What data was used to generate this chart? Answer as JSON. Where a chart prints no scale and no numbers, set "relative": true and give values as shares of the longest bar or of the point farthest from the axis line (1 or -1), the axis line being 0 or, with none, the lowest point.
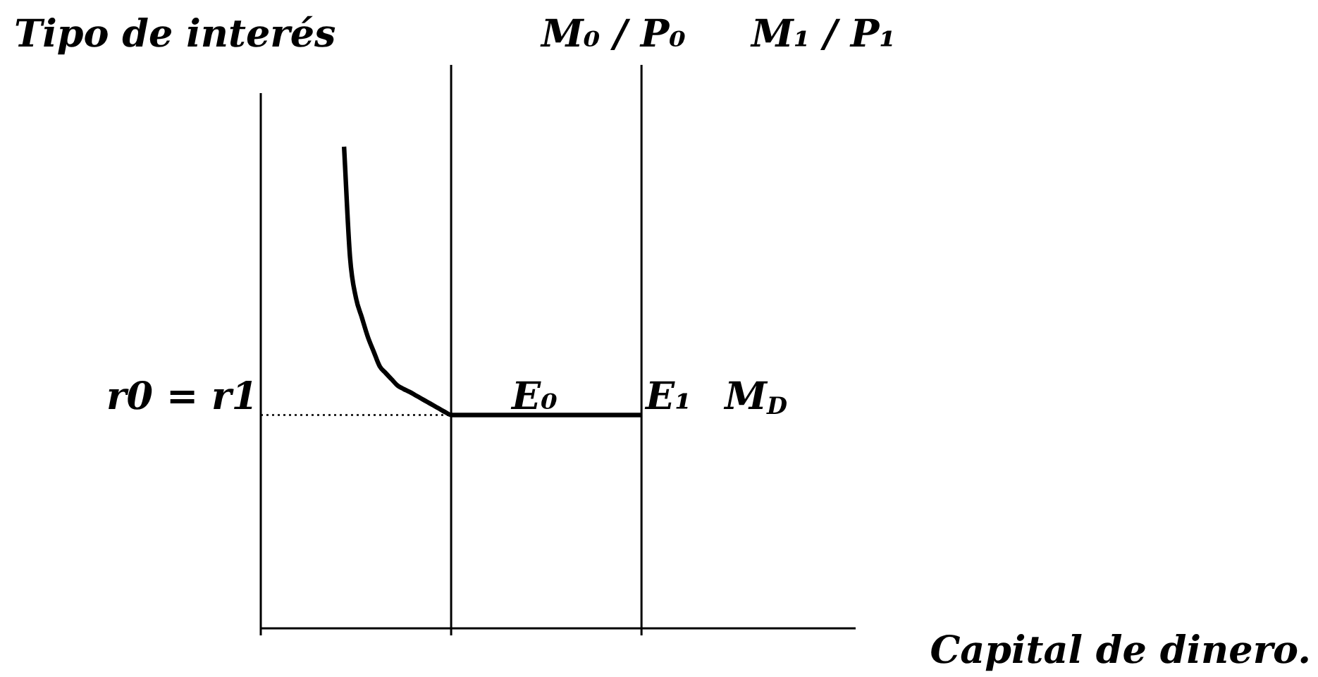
{
  "chart_data": {
    "type": "line",
    "relative": true,
    "xlabel": "Capital de dinero.",
    "ylabel": "Tipo de interés",
    "marker": "none",
    "categories": [
      null,
      null,
      null,
      null,
      null,
      null,
      null,
      null,
      null,
      null,
      null,
      null,
      null,
      null,
      null,
      null,
      null,
      null,
      null,
      null,
      null,
      null,
      null,
      null,
      null,
      null,
      null,
      null,
      null,
      null,
      null,
      null,
      null,
      null,
      null,
      null,
      null,
      null,
      null,
      null,
      null,
      null,
      null,
      null,
      null,
      null,
      null,
      null,
      null,
      null,
      null,
      null,
      null,
      null,
      null,
      null,
      null,
      null,
      null,
      null,
      null,
      null,
      null,
      null,
      null,
      null,
      null,
      null,
      null,
      null,
      null,
      null,
      null,
      null,
      null,
      null,
      null,
      null,
      null,
      null,
      null,
      null,
      null,
      null,
      null,
      null,
      null,
      null,
      null,
      null,
      null,
      null,
      null,
      null,
      null,
      null,
      null,
      null,
      null,
      null,
      null
    ],
    "series": [
      {
        "name": "M$_{D}$",
        "color": "#000000",
        "line_style": "solid",
        "values": [
          null,
          null,
          null,
          null,
          null,
          null,
          null,
          null,
          null,
          null,
          null,
          null,
          null,
          null,
          1,
          0.771,
          0.686,
          0.645,
          0.605,
          0.574,
          0.544,
          0.53,
          0.517,
          0.504,
          0.497,
          0.491,
          0.484,
          0.477,
          0.47,
          0.463,
          0.456,
          0.449,
          0.443,
          0.443,
          0.443,
          0.443,
          0.443,
          0.443,
          0.443,
          0.443,
          0.443,
          0.443,
          0.443,
          0.443,
          0.443,
          0.443,
          0.443,
          0.443,
          0.443,
          0.443,
          0.443,
          0.443,
          0.443,
          0.443,
          0.443,
          0.443,
          0.443,
          0.443,
          0.443,
          0.443,
          0.443,
          0.443,
          0.443,
          0.443,
          0.443,
          null,
          null,
          null,
          null,
          null,
          null,
          null,
          null,
          null,
          null,
          null,
          null,
          null,
          null,
          null,
          null,
          null,
          null,
          null,
          null,
          null,
          null,
          null,
          null,
          null,
          null,
          null,
          null,
          null,
          null,
          null,
          null,
          null,
          null,
          null,
          null
        ]
      },
      {
        "color": "#000000",
        "line_style": "dotted",
        "values": [
          0.443,
          0.443,
          0.443,
          0.443,
          0.443,
          0.443,
          0.443,
          0.443,
          0.443,
          0.443,
          0.443,
          0.443,
          0.443,
          0.443,
          0.443,
          0.443,
          0.443,
          0.443,
          0.443,
          0.443,
          0.443,
          0.443,
          0.443,
          0.443,
          0.443,
          0.443,
          0.443,
          0.443,
          0.443,
          0.443,
          0.443,
          0.443,
          0.443,
          null,
          null,
          null,
          null,
          null,
          null,
          null,
          null,
          null,
          null,
          null,
          null,
          null,
          null,
          null,
          null,
          null,
          null,
          null,
          null,
          null,
          null,
          null,
          null,
          null,
          null,
          null,
          null,
          null,
          null,
          null,
          null,
          null,
          null,
          null,
          null,
          null,
          null,
          null,
          null,
          null,
          null,
          null,
          null,
          null,
          null,
          null,
          null,
          null,
          null,
          null,
          null,
          null,
          null,
          null,
          null,
          null,
          null,
          null,
          null,
          null,
          null,
          null,
          null,
          null,
          null,
          null,
          null
        ]
      }
    ],
    "annotations": [
      "r0 = r1",
      "E₀",
      "E₁",
      "M₀ / P₀",
      "M₁ / P₁"
    ]
  }
}
